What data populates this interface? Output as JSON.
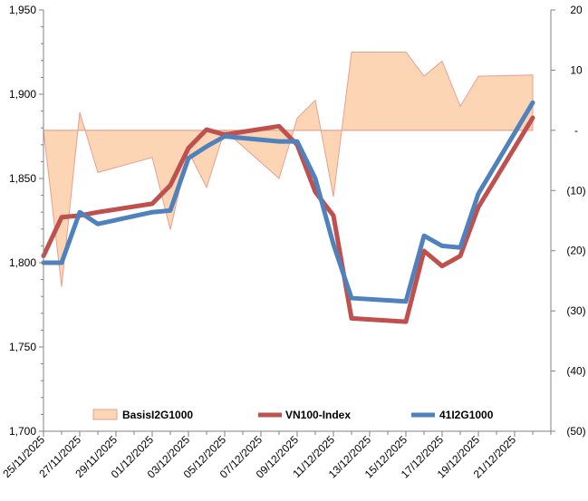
{
  "chart_data": {
    "type": "line",
    "title": "",
    "xlabel": "",
    "ylabel": "",
    "ylabel_right": "",
    "categories": [
      "25/11/2025",
      "26/11/2025",
      "27/11/2025",
      "28/11/2025",
      "01/12/2025",
      "02/12/2025",
      "03/12/2025",
      "04/12/2025",
      "05/12/2025",
      "08/12/2025",
      "09/12/2025",
      "10/12/2025",
      "11/12/2025",
      "12/12/2025",
      "15/12/2025",
      "16/12/2025",
      "17/12/2025",
      "18/12/2025",
      "19/12/2025",
      "22/12/2025"
    ],
    "x_ticks": [
      "25/11/2025",
      "27/11/2025",
      "29/11/2025",
      "01/12/2025",
      "03/12/2025",
      "05/12/2025",
      "07/12/2025",
      "09/12/2025",
      "11/12/2025",
      "13/12/2025",
      "15/12/2025",
      "17/12/2025",
      "19/12/2025",
      "21/12/2025"
    ],
    "x_tick_dates": [
      0,
      2,
      4,
      6,
      8,
      10,
      12,
      14,
      16,
      18,
      20,
      22,
      24,
      26
    ],
    "x_dates": [
      0,
      1,
      2,
      3,
      6,
      7,
      8,
      9,
      10,
      13,
      14,
      15,
      16,
      17,
      20,
      21,
      22,
      23,
      24,
      27
    ],
    "x_range": [
      0,
      28
    ],
    "y_left": {
      "min": 1700,
      "max": 1950,
      "step": 50,
      "tick_labels": [
        "1,700",
        "1,750",
        "1,800",
        "1,850",
        "1,900",
        "1,950"
      ]
    },
    "y_right": {
      "min": -50,
      "max": 20,
      "step": 10,
      "tick_labels": [
        "(50)",
        "(40)",
        "(30)",
        "(20)",
        "(10)",
        "-",
        "10",
        "20"
      ]
    },
    "series": [
      {
        "name": "BasisI2G1000",
        "kind": "area",
        "axis": "right",
        "color": "#FCD5B5",
        "stroke": "#E6A090",
        "x": [
          0,
          1,
          2,
          3,
          6,
          7,
          8,
          9,
          10,
          13,
          14,
          15,
          16,
          17,
          20,
          21,
          22,
          23,
          24,
          27
        ],
        "values": [
          0,
          -26,
          3,
          -7,
          -4.5,
          -16.5,
          -3.5,
          -9.5,
          0,
          -8,
          2,
          5,
          -11,
          13,
          13,
          9,
          11.5,
          4,
          9,
          9.2
        ]
      },
      {
        "name": "VN100-Index",
        "kind": "line",
        "axis": "left",
        "color": "#C0504D",
        "x": [
          0,
          1,
          2,
          3,
          6,
          7,
          8,
          9,
          10,
          13,
          14,
          15,
          16,
          17,
          20,
          21,
          22,
          23,
          24,
          27
        ],
        "values": [
          1804,
          1827,
          1828,
          1830,
          1835,
          1846,
          1868,
          1879,
          1876,
          1881,
          1870,
          1842,
          1828,
          1767,
          1765,
          1807,
          1798,
          1804,
          1833,
          1886
        ]
      },
      {
        "name": "41I2G1000",
        "kind": "line",
        "axis": "left",
        "color": "#4F81BD",
        "x": [
          0,
          1,
          2,
          3,
          6,
          7,
          8,
          9,
          10,
          13,
          14,
          15,
          16,
          17,
          20,
          21,
          22,
          23,
          24,
          27
        ],
        "values": [
          1800,
          1800,
          1830,
          1823,
          1830,
          1831,
          1862,
          1869,
          1875,
          1872,
          1872,
          1850,
          1811,
          1779,
          1777,
          1816,
          1810,
          1809,
          1841,
          1895
        ]
      }
    ],
    "legend": {
      "position": "bottom-inside",
      "entries": [
        "BasisI2G1000",
        "VN100-Index",
        "41I2G1000"
      ]
    },
    "grid": false
  }
}
